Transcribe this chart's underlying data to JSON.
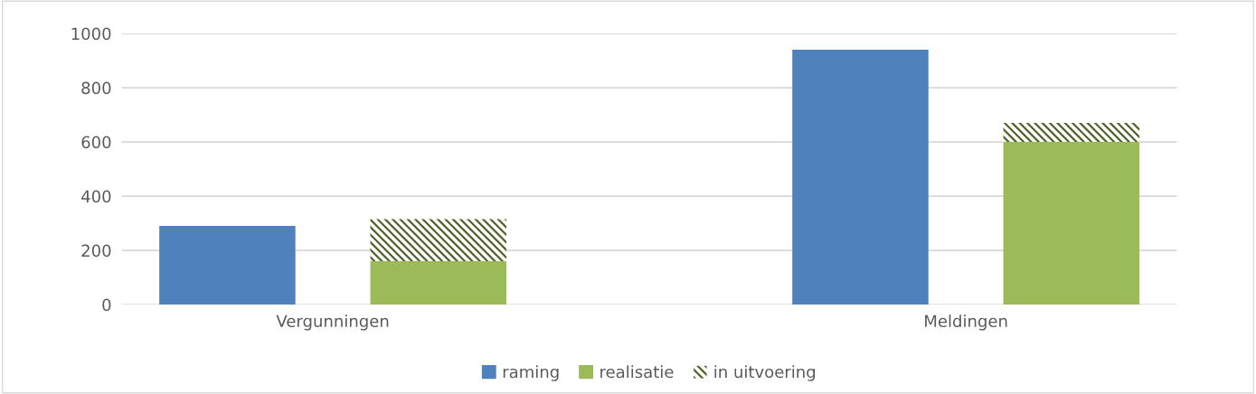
{
  "chart_data": {
    "type": "bar",
    "categories": [
      null,
      "Vergunningen",
      null,
      null,
      null,
      null,
      null,
      "Meldingen",
      null
    ],
    "stacked": true,
    "series": [
      {
        "name": "raming",
        "color": "#4f81bd",
        "values": [
          290,
          null,
          null,
          null,
          null,
          null,
          940,
          null,
          null
        ]
      },
      {
        "name": "realisatie",
        "color": "#9bbb59",
        "values": [
          null,
          null,
          160,
          null,
          null,
          null,
          null,
          null,
          600
        ]
      },
      {
        "name": "in uitvoering",
        "color": "#4f6228",
        "values": [
          null,
          null,
          155,
          null,
          null,
          null,
          null,
          null,
          70
        ]
      }
    ],
    "ylim": [
      0,
      1000
    ],
    "yticks": [
      0,
      200,
      400,
      600,
      800,
      1000
    ],
    "grid": "y",
    "legend": "bottom"
  }
}
